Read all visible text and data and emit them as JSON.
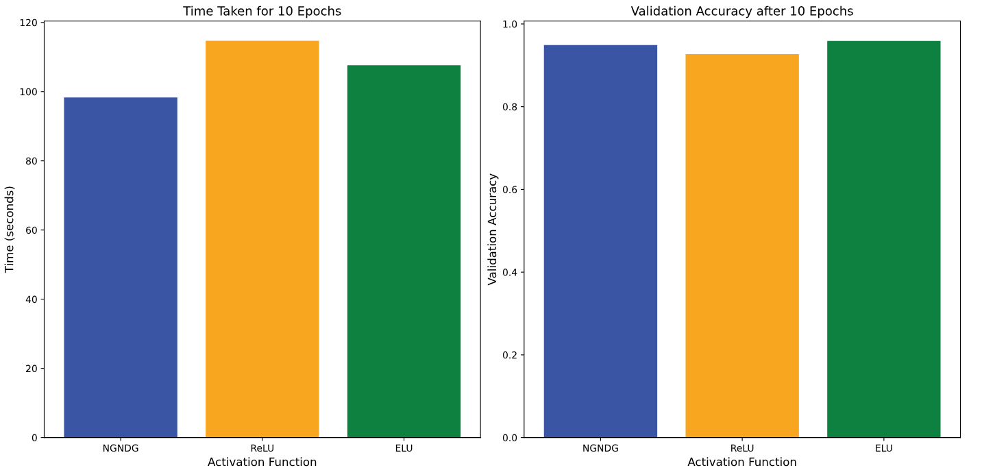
{
  "chart_data": [
    {
      "type": "bar",
      "title": "Time Taken for 10 Epochs",
      "xlabel": "Activation Function",
      "ylabel": "Time (seconds)",
      "categories": [
        "NGNDG",
        "ReLU",
        "ELU"
      ],
      "values": [
        98.3,
        114.7,
        107.6
      ],
      "colors": [
        "#3a55a4",
        "#f8a51f",
        "#0e8040"
      ],
      "ylim": [
        0,
        120.4
      ],
      "yticks": [
        0,
        20,
        40,
        60,
        80,
        100,
        120
      ],
      "grid": false,
      "legend": false
    },
    {
      "type": "bar",
      "title": "Validation Accuracy after 10 Epochs",
      "xlabel": "Activation Function",
      "ylabel": "Validation Accuracy",
      "categories": [
        "NGNDG",
        "ReLU",
        "ELU"
      ],
      "values": [
        0.949,
        0.927,
        0.959
      ],
      "colors": [
        "#3a55a4",
        "#f8a51f",
        "#0e8040"
      ],
      "ylim": [
        0,
        1.007
      ],
      "yticks": [
        {
          "value": 0,
          "label": "0.0"
        },
        0.2,
        0.4,
        0.6,
        0.8,
        {
          "value": 1,
          "label": "1.0"
        }
      ],
      "grid": false,
      "legend": false
    }
  ]
}
